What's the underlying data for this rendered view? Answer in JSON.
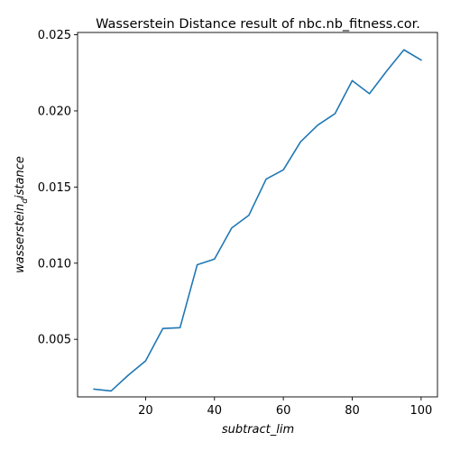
{
  "chart_data": {
    "type": "line",
    "title": "Wasserstein Distance result of nbc.nb_fitness.cor.",
    "xlabel": "subtract_lim",
    "ylabel": "wasserstein_distance",
    "ylabel_parts": {
      "base": "wasserstein",
      "sub": "d",
      "rest": "istance"
    },
    "xlim": [
      0.25,
      104.75
    ],
    "ylim": [
      0.00122,
      0.02515
    ],
    "grid": false,
    "x_ticks": [
      20,
      40,
      60,
      80,
      100
    ],
    "x_tick_labels": [
      "20",
      "40",
      "60",
      "80",
      "100"
    ],
    "y_ticks": [
      0.005,
      0.01,
      0.015,
      0.02,
      0.025
    ],
    "y_tick_labels": [
      "0.005",
      "0.010",
      "0.015",
      "0.020",
      "0.025"
    ],
    "series": [
      {
        "color": "#1f77b4",
        "x": [
          5,
          10,
          15,
          20,
          25,
          30,
          35,
          40,
          45,
          50,
          55,
          60,
          65,
          70,
          75,
          80,
          85,
          90,
          95,
          100
        ],
        "y": [
          0.00173,
          0.00161,
          0.00265,
          0.00358,
          0.00571,
          0.00576,
          0.0099,
          0.01027,
          0.01231,
          0.01315,
          0.01552,
          0.01613,
          0.01797,
          0.01907,
          0.01982,
          0.02199,
          0.02113,
          0.02262,
          0.02401,
          0.02334
        ]
      }
    ]
  }
}
